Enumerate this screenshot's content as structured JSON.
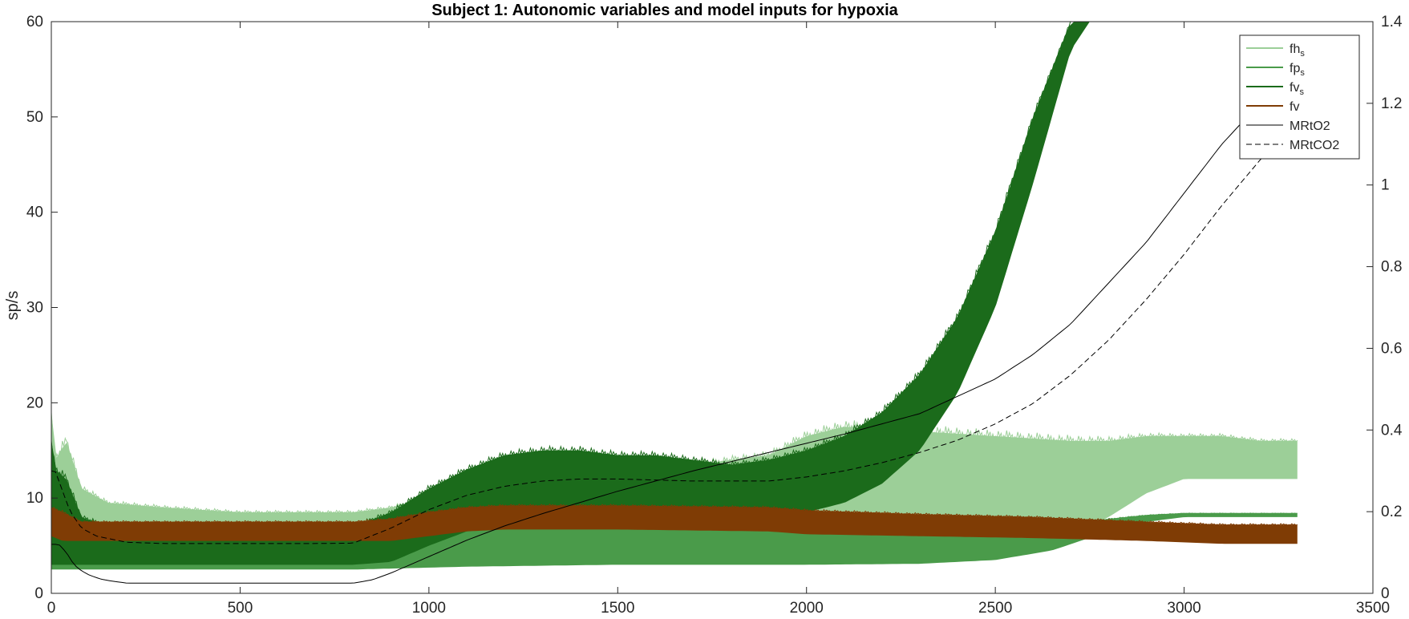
{
  "chart_data": {
    "type": "line",
    "title": "Subject 1: Autonomic variables and model inputs for hypoxia",
    "xlabel": "",
    "ylabel_left": "sp/s",
    "ylabel_right": "",
    "xlim": [
      0,
      3500
    ],
    "ylim_left": [
      0,
      60
    ],
    "ylim_right": [
      0,
      1.4
    ],
    "x_ticks": [
      0,
      500,
      1000,
      1500,
      2000,
      2500,
      3000,
      3500
    ],
    "y_ticks_left": [
      0,
      10,
      20,
      30,
      40,
      50,
      60
    ],
    "y_ticks_right": [
      0,
      0.2,
      0.4,
      0.6,
      0.8,
      1,
      1.2,
      1.4
    ],
    "x_tick_labels": [
      "0",
      "500",
      "1000",
      "1500",
      "2000",
      "2500",
      "3000",
      "3500"
    ],
    "y_tick_labels_left": [
      "0",
      "10",
      "20",
      "30",
      "40",
      "50",
      "60"
    ],
    "y_tick_labels_right": [
      "0",
      "0.2",
      "0.4",
      "0.6",
      "0.8",
      "1",
      "1.2",
      "1.4"
    ],
    "grid": false,
    "legend_position": "top-right",
    "series": [
      {
        "name": "fhs",
        "label_main": "fh",
        "label_sub": "s",
        "axis": "left",
        "style": "band",
        "color": "#9ccf98",
        "x": [
          0,
          10,
          40,
          80,
          150,
          300,
          500,
          700,
          800,
          900,
          1000,
          1100,
          1300,
          1500,
          1700,
          1900,
          2000,
          2100,
          2300,
          2500,
          2700,
          2800,
          2900,
          3000,
          3100,
          3200,
          3300
        ],
        "lower": [
          3,
          3,
          4,
          4,
          5,
          5,
          5,
          5,
          5,
          5,
          5,
          6,
          6,
          6.5,
          6.5,
          6.5,
          6,
          5.5,
          5.2,
          5.2,
          6,
          8,
          10.5,
          12,
          12,
          12,
          12
        ],
        "upper": [
          19,
          14,
          16,
          11,
          9.5,
          9,
          8.5,
          8.5,
          8.5,
          9,
          10,
          11,
          12,
          13,
          13.5,
          14.5,
          16.5,
          17.5,
          17,
          16.5,
          16,
          16,
          16.5,
          16.5,
          16.5,
          16,
          16
        ]
      },
      {
        "name": "fps",
        "label_main": "fp",
        "label_sub": "s",
        "axis": "left",
        "style": "band",
        "color": "#4a9b4a",
        "x": [
          0,
          20,
          80,
          200,
          500,
          800,
          900,
          1000,
          1100,
          1300,
          1500,
          1900,
          2000,
          2300,
          2500,
          2650,
          2800,
          2900,
          3000,
          3100,
          3200,
          3300
        ],
        "lower": [
          2.5,
          2.5,
          2.5,
          2.5,
          2.5,
          2.5,
          2.6,
          2.7,
          2.8,
          2.9,
          3.0,
          3.0,
          3.0,
          3.1,
          3.5,
          4.5,
          6.5,
          7.5,
          8.0,
          8.0,
          8.0,
          8.0
        ],
        "upper": [
          5,
          5,
          4.2,
          4.2,
          4.2,
          4.3,
          4.8,
          5.5,
          6.5,
          7.0,
          7.0,
          7.0,
          6.8,
          6.5,
          6.5,
          7.0,
          7.8,
          8.2,
          8.4,
          8.4,
          8.4,
          8.4
        ]
      },
      {
        "name": "fvs",
        "label_main": "fv",
        "label_sub": "s",
        "axis": "left",
        "style": "band",
        "color": "#1b6b1b",
        "x": [
          0,
          10,
          40,
          80,
          150,
          300,
          500,
          700,
          800,
          900,
          1000,
          1100,
          1200,
          1300,
          1400,
          1500,
          1600,
          1700,
          1800,
          1900,
          2000,
          2100,
          2200,
          2300,
          2400,
          2500,
          2600,
          2700,
          2750,
          3300
        ],
        "lower": [
          3,
          3,
          3,
          3,
          3,
          3,
          3,
          3,
          3,
          3.3,
          5,
          6.5,
          7.2,
          7.5,
          7.5,
          7.5,
          7.5,
          7.5,
          7.8,
          8,
          8.5,
          9.5,
          11.5,
          15,
          21,
          30,
          43,
          57,
          60,
          60
        ],
        "upper": [
          16,
          13,
          12,
          8,
          7,
          7,
          7,
          7,
          7,
          8.5,
          11,
          13,
          14.5,
          15,
          15,
          14.5,
          14.5,
          14,
          13.5,
          14,
          15,
          16.5,
          19,
          23,
          29,
          38,
          50,
          60,
          60,
          60
        ]
      },
      {
        "name": "fv",
        "label_main": "fv",
        "label_sub": "",
        "axis": "left",
        "style": "band",
        "color": "#7f3c05",
        "x": [
          0,
          30,
          80,
          200,
          500,
          800,
          900,
          1000,
          1100,
          1200,
          1500,
          1900,
          2000,
          2300,
          2600,
          2900,
          3100,
          3300
        ],
        "lower": [
          6,
          5.5,
          5.5,
          5.5,
          5.5,
          5.5,
          5.5,
          6,
          6.5,
          6.7,
          6.7,
          6.5,
          6.2,
          6,
          5.8,
          5.5,
          5.2,
          5.2
        ],
        "upper": [
          9,
          8.5,
          7.5,
          7.5,
          7.5,
          7.5,
          7.8,
          8.5,
          9,
          9.2,
          9.2,
          9,
          8.7,
          8.3,
          8,
          7.5,
          7.2,
          7.2
        ]
      },
      {
        "name": "MRtO2",
        "label_main": "MRtO2",
        "label_sub": "",
        "axis": "right",
        "style": "solid",
        "color": "#000000",
        "x": [
          0,
          20,
          40,
          60,
          80,
          100,
          130,
          160,
          200,
          300,
          500,
          700,
          800,
          850,
          900,
          1000,
          1100,
          1200,
          1300,
          1500,
          1700,
          1900,
          2100,
          2300,
          2500,
          2600,
          2700,
          2800,
          2900,
          3000,
          3100,
          3200,
          3300
        ],
        "y": [
          0.12,
          0.12,
          0.1,
          0.07,
          0.055,
          0.045,
          0.035,
          0.03,
          0.025,
          0.025,
          0.025,
          0.025,
          0.025,
          0.033,
          0.05,
          0.09,
          0.13,
          0.165,
          0.195,
          0.25,
          0.3,
          0.345,
          0.39,
          0.44,
          0.525,
          0.585,
          0.66,
          0.76,
          0.86,
          0.98,
          1.1,
          1.2,
          1.25
        ]
      },
      {
        "name": "MRtCO2",
        "label_main": "MRtCO2",
        "label_sub": "",
        "axis": "right",
        "style": "dashed",
        "color": "#000000",
        "x": [
          0,
          10,
          30,
          50,
          80,
          120,
          200,
          300,
          500,
          700,
          800,
          900,
          1000,
          1100,
          1200,
          1300,
          1400,
          1500,
          1700,
          1900,
          2000,
          2100,
          2200,
          2300,
          2400,
          2500,
          2600,
          2700,
          2800,
          2900,
          3000,
          3100,
          3200,
          3300
        ],
        "y": [
          0.3,
          0.3,
          0.25,
          0.2,
          0.16,
          0.14,
          0.125,
          0.122,
          0.122,
          0.122,
          0.123,
          0.16,
          0.205,
          0.24,
          0.262,
          0.275,
          0.28,
          0.28,
          0.275,
          0.275,
          0.285,
          0.3,
          0.32,
          0.345,
          0.375,
          0.415,
          0.465,
          0.535,
          0.62,
          0.72,
          0.83,
          0.95,
          1.06,
          1.16
        ]
      }
    ]
  }
}
